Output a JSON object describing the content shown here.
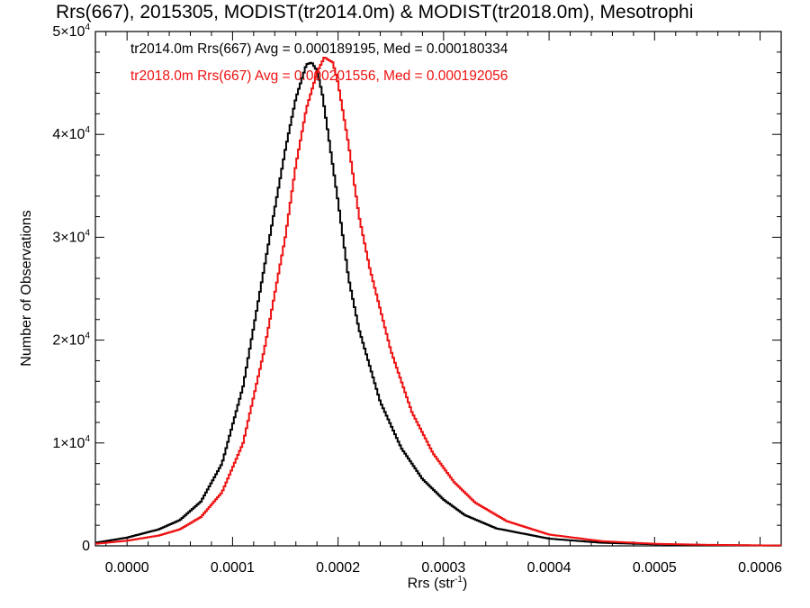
{
  "chart_data": {
    "type": "line",
    "title": "Rrs(667), 2015305, MODIST(tr2014.0m) & MODIST(tr2018.0m), Mesotrophi",
    "xlabel": "Rrs (str⁻¹)",
    "xlabel_base": "Rrs (str",
    "xlabel_exp": "-1",
    "xlabel_close": ")",
    "ylabel": "Number of Observations",
    "xlim": [
      -3e-05,
      0.00062
    ],
    "ylim": [
      0,
      50000
    ],
    "x_ticks": [
      0.0,
      0.0001,
      0.0002,
      0.0003,
      0.0004,
      0.0005,
      0.0006
    ],
    "x_tick_labels": [
      "0.0000",
      "0.0001",
      "0.0002",
      "0.0003",
      "0.0004",
      "0.0005",
      "0.0006"
    ],
    "y_ticks": [
      0,
      10000,
      20000,
      30000,
      40000,
      50000
    ],
    "y_tick_labels": [
      {
        "mantissa": "0",
        "exp": ""
      },
      {
        "mantissa": "1×10",
        "exp": "4"
      },
      {
        "mantissa": "2×10",
        "exp": "4"
      },
      {
        "mantissa": "3×10",
        "exp": "4"
      },
      {
        "mantissa": "4×10",
        "exp": "4"
      },
      {
        "mantissa": "5×10",
        "exp": "4"
      }
    ],
    "legend": [
      {
        "text": "tr2014.0m Rrs(667) Avg = 0.000189195, Med = 0.000180334",
        "color": "#000000"
      },
      {
        "text": "tr2018.0m Rrs(667) Avg = 0.000201556, Med = 0.000192056",
        "color": "#ee1111"
      }
    ],
    "series": [
      {
        "color": "#000000",
        "x": [
          -3e-05,
          0.0,
          3e-05,
          5e-05,
          7e-05,
          9e-05,
          0.00011,
          0.00013,
          0.00015,
          0.00016,
          0.00017,
          0.000175,
          0.00018,
          0.000185,
          0.00019,
          0.0002,
          0.00021,
          0.00022,
          0.00024,
          0.00026,
          0.00028,
          0.0003,
          0.00032,
          0.00035,
          0.0004,
          0.00045,
          0.0005,
          0.00055,
          0.0006,
          0.00062
        ],
        "y": [
          300,
          800,
          1600,
          2500,
          4300,
          8000,
          15500,
          27000,
          38500,
          43500,
          46800,
          47000,
          46200,
          44000,
          40500,
          33500,
          26000,
          21000,
          14000,
          9500,
          6500,
          4500,
          3000,
          1700,
          700,
          300,
          150,
          80,
          40,
          30
        ]
      },
      {
        "color": "#ee1111",
        "x": [
          -3e-05,
          0.0,
          3e-05,
          5e-05,
          7e-05,
          9e-05,
          0.00011,
          0.00013,
          0.00015,
          0.00016,
          0.00017,
          0.00018,
          0.000187,
          0.000195,
          0.0002,
          0.00021,
          0.00022,
          0.00023,
          0.00025,
          0.00027,
          0.00029,
          0.00031,
          0.00033,
          0.00036,
          0.0004,
          0.00045,
          0.0005,
          0.00055,
          0.0006,
          0.00062
        ],
        "y": [
          200,
          500,
          1000,
          1600,
          2800,
          5200,
          10000,
          19000,
          30000,
          37000,
          42500,
          46000,
          47500,
          47000,
          45000,
          39000,
          32000,
          27000,
          19000,
          13000,
          9000,
          6200,
          4200,
          2400,
          1100,
          450,
          200,
          100,
          50,
          30
        ]
      }
    ]
  }
}
